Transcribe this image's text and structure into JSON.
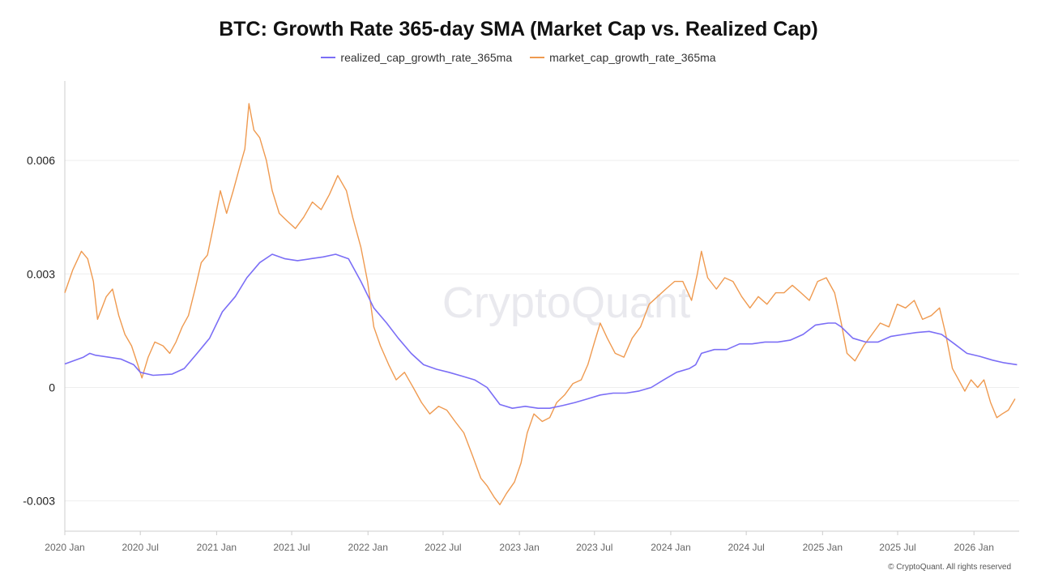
{
  "colors": {
    "realized": "#7b6ef6",
    "market": "#ef9a50",
    "grid": "#eeeeee",
    "axis": "#cccccc"
  },
  "watermark": "CryptoQuant",
  "copyright": "© CryptoQuant. All rights reserved",
  "chart_data": {
    "type": "line",
    "title": "BTC: Growth Rate 365-day SMA (Market Cap vs. Realized Cap)",
    "xlabel": "",
    "ylabel": "",
    "legend_position": "top-center",
    "grid": true,
    "ylim": [
      -0.0038,
      0.0081
    ],
    "xlim": [
      "2020-01-01",
      "2026-04-20"
    ],
    "y_ticks": [
      {
        "value": 0.006,
        "label": "0.006"
      },
      {
        "value": 0.003,
        "label": "0.003"
      },
      {
        "value": 0,
        "label": "0"
      },
      {
        "value": -0.003,
        "label": "-0.003"
      }
    ],
    "x_ticks": [
      {
        "date": "2020-01-01",
        "label": "2020 Jan"
      },
      {
        "date": "2020-07-01",
        "label": "2020 Jul"
      },
      {
        "date": "2021-01-01",
        "label": "2021 Jan"
      },
      {
        "date": "2021-07-01",
        "label": "2021 Jul"
      },
      {
        "date": "2022-01-01",
        "label": "2022 Jan"
      },
      {
        "date": "2022-07-01",
        "label": "2022 Jul"
      },
      {
        "date": "2023-01-01",
        "label": "2023 Jan"
      },
      {
        "date": "2023-07-01",
        "label": "2023 Jul"
      },
      {
        "date": "2024-01-01",
        "label": "2024 Jan"
      },
      {
        "date": "2024-07-01",
        "label": "2024 Jul"
      },
      {
        "date": "2025-01-01",
        "label": "2025 Jan"
      },
      {
        "date": "2025-07-01",
        "label": "2025 Jul"
      },
      {
        "date": "2026-01-01",
        "label": "2026 Jan"
      }
    ],
    "series": [
      {
        "name": "realized_cap_growth_rate_365ma",
        "color": "#7b6ef6",
        "points": [
          [
            "2020-01-01",
            0.00062
          ],
          [
            "2020-02-15",
            0.0008
          ],
          [
            "2020-03-01",
            0.0009
          ],
          [
            "2020-03-15",
            0.00085
          ],
          [
            "2020-04-15",
            0.0008
          ],
          [
            "2020-05-15",
            0.00075
          ],
          [
            "2020-06-15",
            0.0006
          ],
          [
            "2020-07-01",
            0.0004
          ],
          [
            "2020-08-01",
            0.00032
          ],
          [
            "2020-09-15",
            0.00035
          ],
          [
            "2020-10-15",
            0.0005
          ],
          [
            "2020-11-15",
            0.0009
          ],
          [
            "2020-12-15",
            0.0013
          ],
          [
            "2021-01-15",
            0.002
          ],
          [
            "2021-02-15",
            0.0024
          ],
          [
            "2021-03-15",
            0.0029
          ],
          [
            "2021-04-15",
            0.0033
          ],
          [
            "2021-05-15",
            0.00352
          ],
          [
            "2021-06-15",
            0.0034
          ],
          [
            "2021-07-15",
            0.00335
          ],
          [
            "2021-08-15",
            0.0034
          ],
          [
            "2021-09-15",
            0.00345
          ],
          [
            "2021-10-15",
            0.00352
          ],
          [
            "2021-11-15",
            0.0034
          ],
          [
            "2021-12-15",
            0.0028
          ],
          [
            "2022-01-15",
            0.0021
          ],
          [
            "2022-02-15",
            0.0017
          ],
          [
            "2022-03-15",
            0.0013
          ],
          [
            "2022-04-15",
            0.0009
          ],
          [
            "2022-05-15",
            0.0006
          ],
          [
            "2022-06-15",
            0.00048
          ],
          [
            "2022-07-15",
            0.0004
          ],
          [
            "2022-08-15",
            0.0003
          ],
          [
            "2022-09-15",
            0.0002
          ],
          [
            "2022-10-15",
            0.0
          ],
          [
            "2022-11-15",
            -0.00045
          ],
          [
            "2022-12-15",
            -0.00055
          ],
          [
            "2023-01-15",
            -0.0005
          ],
          [
            "2023-02-15",
            -0.00055
          ],
          [
            "2023-03-15",
            -0.00055
          ],
          [
            "2023-04-15",
            -0.00048
          ],
          [
            "2023-05-15",
            -0.0004
          ],
          [
            "2023-06-15",
            -0.0003
          ],
          [
            "2023-07-15",
            -0.0002
          ],
          [
            "2023-08-15",
            -0.00015
          ],
          [
            "2023-09-15",
            -0.00015
          ],
          [
            "2023-10-15",
            -0.0001
          ],
          [
            "2023-11-15",
            0.0
          ],
          [
            "2023-12-15",
            0.0002
          ],
          [
            "2024-01-15",
            0.0004
          ],
          [
            "2024-02-15",
            0.0005
          ],
          [
            "2024-03-01",
            0.0006
          ],
          [
            "2024-03-15",
            0.0009
          ],
          [
            "2024-04-15",
            0.001
          ],
          [
            "2024-05-15",
            0.001
          ],
          [
            "2024-06-15",
            0.00115
          ],
          [
            "2024-07-15",
            0.00115
          ],
          [
            "2024-08-15",
            0.0012
          ],
          [
            "2024-09-15",
            0.0012
          ],
          [
            "2024-10-15",
            0.00125
          ],
          [
            "2024-11-15",
            0.0014
          ],
          [
            "2024-12-15",
            0.00165
          ],
          [
            "2025-01-15",
            0.0017
          ],
          [
            "2025-02-01",
            0.0017
          ],
          [
            "2025-02-15",
            0.0016
          ],
          [
            "2025-03-15",
            0.0013
          ],
          [
            "2025-04-15",
            0.0012
          ],
          [
            "2025-05-15",
            0.0012
          ],
          [
            "2025-06-15",
            0.00135
          ],
          [
            "2025-07-15",
            0.0014
          ],
          [
            "2025-08-15",
            0.00145
          ],
          [
            "2025-09-15",
            0.00148
          ],
          [
            "2025-10-15",
            0.0014
          ],
          [
            "2025-11-15",
            0.00115
          ],
          [
            "2025-12-15",
            0.0009
          ],
          [
            "2026-01-15",
            0.00082
          ],
          [
            "2026-02-15",
            0.00072
          ],
          [
            "2026-03-15",
            0.00065
          ],
          [
            "2026-04-15",
            0.0006
          ]
        ]
      },
      {
        "name": "market_cap_growth_rate_365ma",
        "color": "#ef9a50",
        "points": [
          [
            "2020-01-01",
            0.0025
          ],
          [
            "2020-01-20",
            0.0031
          ],
          [
            "2020-02-10",
            0.0036
          ],
          [
            "2020-02-25",
            0.0034
          ],
          [
            "2020-03-10",
            0.0028
          ],
          [
            "2020-03-20",
            0.0018
          ],
          [
            "2020-04-10",
            0.0024
          ],
          [
            "2020-04-25",
            0.0026
          ],
          [
            "2020-05-10",
            0.0019
          ],
          [
            "2020-05-25",
            0.0014
          ],
          [
            "2020-06-10",
            0.0011
          ],
          [
            "2020-06-25",
            0.0006
          ],
          [
            "2020-07-05",
            0.00025
          ],
          [
            "2020-07-20",
            0.0008
          ],
          [
            "2020-08-05",
            0.0012
          ],
          [
            "2020-08-25",
            0.0011
          ],
          [
            "2020-09-10",
            0.0009
          ],
          [
            "2020-09-25",
            0.0012
          ],
          [
            "2020-10-10",
            0.0016
          ],
          [
            "2020-10-25",
            0.0019
          ],
          [
            "2020-11-10",
            0.0026
          ],
          [
            "2020-11-25",
            0.0033
          ],
          [
            "2020-12-10",
            0.0035
          ],
          [
            "2020-12-25",
            0.0043
          ],
          [
            "2021-01-10",
            0.0052
          ],
          [
            "2021-01-25",
            0.0046
          ],
          [
            "2021-02-10",
            0.0052
          ],
          [
            "2021-02-25",
            0.0058
          ],
          [
            "2021-03-10",
            0.0063
          ],
          [
            "2021-03-20",
            0.0075
          ],
          [
            "2021-04-01",
            0.0068
          ],
          [
            "2021-04-15",
            0.0066
          ],
          [
            "2021-05-01",
            0.006
          ],
          [
            "2021-05-15",
            0.0052
          ],
          [
            "2021-06-01",
            0.0046
          ],
          [
            "2021-06-20",
            0.0044
          ],
          [
            "2021-07-10",
            0.0042
          ],
          [
            "2021-07-30",
            0.0045
          ],
          [
            "2021-08-20",
            0.0049
          ],
          [
            "2021-09-10",
            0.0047
          ],
          [
            "2021-09-30",
            0.0051
          ],
          [
            "2021-10-20",
            0.0056
          ],
          [
            "2021-11-10",
            0.0052
          ],
          [
            "2021-11-25",
            0.0045
          ],
          [
            "2021-12-15",
            0.0037
          ],
          [
            "2021-12-31",
            0.0028
          ],
          [
            "2022-01-15",
            0.0016
          ],
          [
            "2022-01-31",
            0.0011
          ],
          [
            "2022-02-20",
            0.0006
          ],
          [
            "2022-03-10",
            0.0002
          ],
          [
            "2022-03-30",
            0.0004
          ],
          [
            "2022-04-20",
            0.0
          ],
          [
            "2022-05-10",
            -0.0004
          ],
          [
            "2022-05-30",
            -0.0007
          ],
          [
            "2022-06-20",
            -0.0005
          ],
          [
            "2022-07-10",
            -0.0006
          ],
          [
            "2022-07-30",
            -0.0009
          ],
          [
            "2022-08-20",
            -0.0012
          ],
          [
            "2022-09-10",
            -0.0018
          ],
          [
            "2022-09-30",
            -0.0024
          ],
          [
            "2022-10-15",
            -0.0026
          ],
          [
            "2022-11-01",
            -0.0029
          ],
          [
            "2022-11-15",
            -0.0031
          ],
          [
            "2022-12-01",
            -0.0028
          ],
          [
            "2022-12-20",
            -0.0025
          ],
          [
            "2023-01-05",
            -0.002
          ],
          [
            "2023-01-20",
            -0.0012
          ],
          [
            "2023-02-05",
            -0.0007
          ],
          [
            "2023-02-25",
            -0.0009
          ],
          [
            "2023-03-15",
            -0.0008
          ],
          [
            "2023-04-01",
            -0.0004
          ],
          [
            "2023-04-20",
            -0.0002
          ],
          [
            "2023-05-10",
            0.0001
          ],
          [
            "2023-05-30",
            0.0002
          ],
          [
            "2023-06-15",
            0.0006
          ],
          [
            "2023-07-01",
            0.0012
          ],
          [
            "2023-07-15",
            0.0017
          ],
          [
            "2023-08-01",
            0.0013
          ],
          [
            "2023-08-20",
            0.0009
          ],
          [
            "2023-09-10",
            0.0008
          ],
          [
            "2023-09-30",
            0.0013
          ],
          [
            "2023-10-20",
            0.0016
          ],
          [
            "2023-11-10",
            0.0022
          ],
          [
            "2023-11-30",
            0.0024
          ],
          [
            "2023-12-20",
            0.0026
          ],
          [
            "2024-01-10",
            0.0028
          ],
          [
            "2024-01-30",
            0.0028
          ],
          [
            "2024-02-20",
            0.0023
          ],
          [
            "2024-03-05",
            0.003
          ],
          [
            "2024-03-15",
            0.0036
          ],
          [
            "2024-03-30",
            0.0029
          ],
          [
            "2024-04-20",
            0.0026
          ],
          [
            "2024-05-10",
            0.0029
          ],
          [
            "2024-05-30",
            0.0028
          ],
          [
            "2024-06-20",
            0.0024
          ],
          [
            "2024-07-10",
            0.0021
          ],
          [
            "2024-07-30",
            0.0024
          ],
          [
            "2024-08-20",
            0.0022
          ],
          [
            "2024-09-10",
            0.0025
          ],
          [
            "2024-09-30",
            0.0025
          ],
          [
            "2024-10-20",
            0.0027
          ],
          [
            "2024-11-10",
            0.0025
          ],
          [
            "2024-11-30",
            0.0023
          ],
          [
            "2024-12-20",
            0.0028
          ],
          [
            "2025-01-10",
            0.0029
          ],
          [
            "2025-01-30",
            0.0025
          ],
          [
            "2025-02-15",
            0.0017
          ],
          [
            "2025-03-01",
            0.0009
          ],
          [
            "2025-03-20",
            0.0007
          ],
          [
            "2025-04-10",
            0.0011
          ],
          [
            "2025-04-30",
            0.0014
          ],
          [
            "2025-05-20",
            0.0017
          ],
          [
            "2025-06-10",
            0.0016
          ],
          [
            "2025-06-30",
            0.0022
          ],
          [
            "2025-07-20",
            0.0021
          ],
          [
            "2025-08-10",
            0.0023
          ],
          [
            "2025-08-30",
            0.0018
          ],
          [
            "2025-09-20",
            0.0019
          ],
          [
            "2025-10-10",
            0.0021
          ],
          [
            "2025-10-25",
            0.0014
          ],
          [
            "2025-11-10",
            0.0005
          ],
          [
            "2025-11-25",
            0.0002
          ],
          [
            "2025-12-10",
            -0.0001
          ],
          [
            "2025-12-25",
            0.0002
          ],
          [
            "2026-01-10",
            0.0
          ],
          [
            "2026-01-25",
            0.0002
          ],
          [
            "2026-02-10",
            -0.0004
          ],
          [
            "2026-02-25",
            -0.0008
          ],
          [
            "2026-03-10",
            -0.0007
          ],
          [
            "2026-03-25",
            -0.0006
          ],
          [
            "2026-04-10",
            -0.0003
          ]
        ]
      }
    ]
  }
}
